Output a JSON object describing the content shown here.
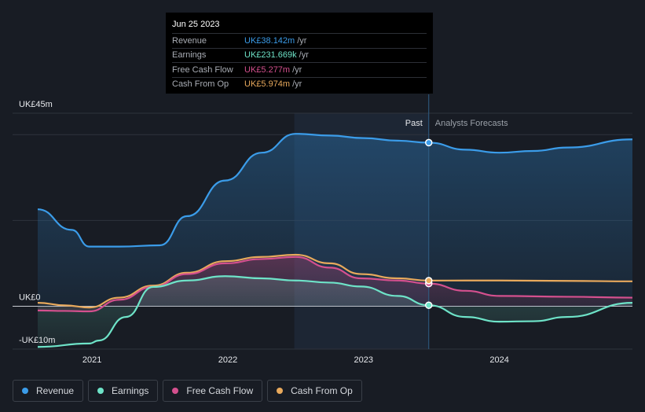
{
  "tooltip": {
    "date": "Jun 25 2023",
    "rows": [
      {
        "label": "Revenue",
        "value": "UK£38.142m",
        "unit": "/yr",
        "color": "#3b9ce9"
      },
      {
        "label": "Earnings",
        "value": "UK£231.669k",
        "unit": "/yr",
        "color": "#6ee3c8"
      },
      {
        "label": "Free Cash Flow",
        "value": "UK£5.277m",
        "unit": "/yr",
        "color": "#d4508e"
      },
      {
        "label": "Cash From Op",
        "value": "UK£5.974m",
        "unit": "/yr",
        "color": "#e8a95c"
      }
    ]
  },
  "labels": {
    "past": "Past",
    "forecast": "Analysts Forecasts"
  },
  "legend": [
    {
      "label": "Revenue",
      "color": "#3b9ce9"
    },
    {
      "label": "Earnings",
      "color": "#6ee3c8"
    },
    {
      "label": "Free Cash Flow",
      "color": "#d4508e"
    },
    {
      "label": "Cash From Op",
      "color": "#e8a95c"
    }
  ],
  "chart_data": {
    "type": "line",
    "title": "",
    "xlabel": "",
    "ylabel": "",
    "units": "UK£ millions",
    "xlim": [
      2020.6,
      2024.98
    ],
    "ylim": [
      -10,
      45
    ],
    "y_tick_labels": [
      {
        "value": 45,
        "label": "UK£45m"
      },
      {
        "value": 0,
        "label": "UK£0"
      },
      {
        "value": -10,
        "label": "-UK£10m"
      }
    ],
    "x_ticks": [
      {
        "value": 2021,
        "label": "2021"
      },
      {
        "value": 2022,
        "label": "2022"
      },
      {
        "value": 2023,
        "label": "2023"
      },
      {
        "value": 2024,
        "label": "2024"
      }
    ],
    "past_end": 2023.48,
    "shaded_start": 2022.49,
    "series": [
      {
        "name": "Revenue",
        "color": "#3b9ce9",
        "fill": true,
        "x": [
          2020.6,
          2020.85,
          2020.98,
          2021.2,
          2021.5,
          2021.7,
          2021.98,
          2022.25,
          2022.5,
          2022.75,
          2023.0,
          2023.25,
          2023.48,
          2023.75,
          2024.0,
          2024.25,
          2024.5,
          2024.98
        ],
        "y": [
          22.6,
          17.8,
          13.9,
          13.9,
          14.2,
          21.0,
          29.3,
          35.8,
          40.2,
          39.8,
          39.2,
          38.6,
          38.14,
          36.5,
          35.8,
          36.2,
          37.0,
          38.9
        ]
      },
      {
        "name": "Earnings",
        "color": "#6ee3c8",
        "fill": true,
        "x": [
          2020.6,
          2020.98,
          2021.05,
          2021.25,
          2021.45,
          2021.7,
          2021.98,
          2022.25,
          2022.5,
          2022.75,
          2022.98,
          2023.25,
          2023.48,
          2023.75,
          2024.0,
          2024.25,
          2024.5,
          2024.98
        ],
        "y": [
          -9.5,
          -8.7,
          -8.0,
          -2.5,
          4.5,
          6.0,
          7.0,
          6.5,
          6.0,
          5.5,
          4.6,
          2.4,
          0.23,
          -2.5,
          -3.6,
          -3.5,
          -2.5,
          0.8
        ]
      },
      {
        "name": "Free Cash Flow",
        "color": "#d4508e",
        "fill": true,
        "x": [
          2020.6,
          2020.8,
          2020.98,
          2021.2,
          2021.45,
          2021.7,
          2021.98,
          2022.25,
          2022.5,
          2022.75,
          2022.98,
          2023.25,
          2023.48,
          2023.75,
          2024.0,
          2024.5,
          2024.98
        ],
        "y": [
          -1.0,
          -1.1,
          -1.2,
          1.5,
          4.5,
          7.5,
          10.0,
          11.0,
          11.5,
          9.0,
          6.5,
          6.0,
          5.28,
          3.6,
          2.4,
          2.2,
          2.0
        ]
      },
      {
        "name": "Cash From Op",
        "color": "#e8a95c",
        "fill": false,
        "x": [
          2020.6,
          2020.8,
          2020.98,
          2021.2,
          2021.45,
          2021.7,
          2021.98,
          2022.25,
          2022.5,
          2022.75,
          2022.98,
          2023.25,
          2023.48,
          2023.75,
          2024.0,
          2024.5,
          2024.98
        ],
        "y": [
          0.8,
          0.2,
          -0.3,
          2.0,
          4.8,
          7.8,
          10.5,
          11.5,
          12.0,
          10.0,
          7.5,
          6.5,
          5.97,
          6.0,
          6.0,
          5.9,
          5.8
        ]
      }
    ],
    "markers": [
      {
        "series": "Revenue",
        "x": 2023.48,
        "y": 38.142
      },
      {
        "series": "Earnings",
        "x": 2023.48,
        "y": 0.232
      },
      {
        "series": "Free Cash Flow",
        "x": 2023.48,
        "y": 5.277
      },
      {
        "series": "Cash From Op",
        "x": 2023.48,
        "y": 5.974
      }
    ]
  }
}
